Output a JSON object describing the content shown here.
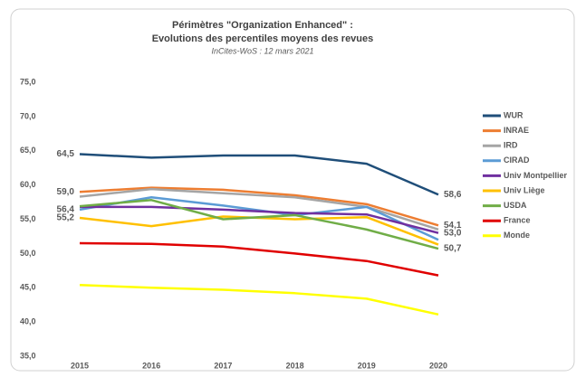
{
  "chart_data": {
    "type": "line",
    "title": "Périmètres \"Organization Enhanced\" :",
    "subtitle": "Evolutions des percentiles moyens des revues",
    "annotation": "InCites-WoS : 12 mars 2021",
    "categories": [
      "2015",
      "2016",
      "2017",
      "2018",
      "2019",
      "2020"
    ],
    "ylim": [
      35,
      75
    ],
    "yticks": [
      {
        "value": 35,
        "label": "35,0"
      },
      {
        "value": 40,
        "label": "40,0"
      },
      {
        "value": 45,
        "label": "45,0"
      },
      {
        "value": 50,
        "label": "50,0"
      },
      {
        "value": 55,
        "label": "55,0"
      },
      {
        "value": 60,
        "label": "60,0"
      },
      {
        "value": 65,
        "label": "65,0"
      },
      {
        "value": 70,
        "label": "70,0"
      },
      {
        "value": 75,
        "label": "75,0"
      }
    ],
    "grid": false,
    "legend": "right",
    "series": [
      {
        "name": "WUR",
        "color": "#1f4e79",
        "values": [
          64.5,
          64.0,
          64.3,
          64.3,
          63.1,
          58.6
        ],
        "value_labels": [
          "64,5",
          null,
          null,
          null,
          null,
          "58,6"
        ]
      },
      {
        "name": "INRAE",
        "color": "#ed7d31",
        "values": [
          59.0,
          59.6,
          59.3,
          58.5,
          57.2,
          54.1
        ],
        "value_labels": [
          "59,0",
          null,
          null,
          null,
          null,
          "54,1"
        ]
      },
      {
        "name": "IRD",
        "color": "#a5a5a5",
        "values": [
          58.3,
          59.4,
          58.8,
          58.2,
          56.8,
          53.5
        ]
      },
      {
        "name": "CIRAD",
        "color": "#5b9bd5",
        "values": [
          56.4,
          58.2,
          57.0,
          55.6,
          56.8,
          52.0
        ],
        "value_labels": [
          "56,4",
          null,
          null,
          null,
          null,
          null
        ]
      },
      {
        "name": "Univ Montpellier",
        "color": "#7030a0",
        "values": [
          56.8,
          56.8,
          56.4,
          55.9,
          55.7,
          53.0
        ],
        "value_labels": [
          null,
          null,
          null,
          null,
          null,
          "53,0"
        ]
      },
      {
        "name": "Univ Liège",
        "color": "#ffc000",
        "values": [
          55.2,
          54.0,
          55.4,
          55.0,
          55.3,
          51.3
        ],
        "value_labels": [
          "55,2",
          null,
          null,
          null,
          null,
          null
        ]
      },
      {
        "name": "USDA",
        "color": "#70ad47",
        "values": [
          56.9,
          57.8,
          55.0,
          55.6,
          53.5,
          50.7
        ],
        "value_labels": [
          null,
          null,
          null,
          null,
          null,
          "50,7"
        ]
      },
      {
        "name": "France",
        "color": "#e00000",
        "values": [
          51.5,
          51.4,
          51.0,
          50.0,
          48.9,
          46.8
        ]
      },
      {
        "name": "Monde",
        "color": "#ffff00",
        "values": [
          45.4,
          45.0,
          44.7,
          44.2,
          43.4,
          41.1
        ]
      }
    ]
  }
}
